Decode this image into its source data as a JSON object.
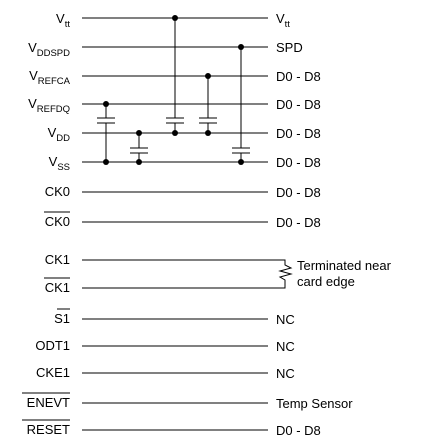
{
  "signals": [
    {
      "label": "V",
      "sub": "tt",
      "dest": "V",
      "dest_sub": "tt"
    },
    {
      "label": "V",
      "sub": "DDSPD",
      "dest": "SPD"
    },
    {
      "label": "V",
      "sub": "REFCA",
      "dest": "D0 - D8"
    },
    {
      "label": "V",
      "sub": "REFDQ",
      "dest": "D0 - D8"
    },
    {
      "label": "V",
      "sub": "DD",
      "dest": "D0 - D8"
    },
    {
      "label": "V",
      "sub": "SS",
      "dest": "D0 - D8"
    },
    {
      "label": "CK0",
      "dest": "D0 - D8"
    },
    {
      "label": "CK0",
      "overbar": true,
      "dest": "D0 - D8"
    },
    {
      "label": "CK1"
    },
    {
      "label": "CK1",
      "overbar": true
    },
    {
      "label": "S1",
      "overbar": true,
      "dest": "NC"
    },
    {
      "label": "ODT1",
      "dest": "NC"
    },
    {
      "label": "CKE1",
      "dest": "NC"
    },
    {
      "label": "ENEVT",
      "overbar": true,
      "dest": "Temp Sensor"
    },
    {
      "label": "RESET",
      "overbar": true,
      "dest": "D0 - D8"
    }
  ],
  "termination_note": [
    "Terminated near",
    "card edge"
  ]
}
